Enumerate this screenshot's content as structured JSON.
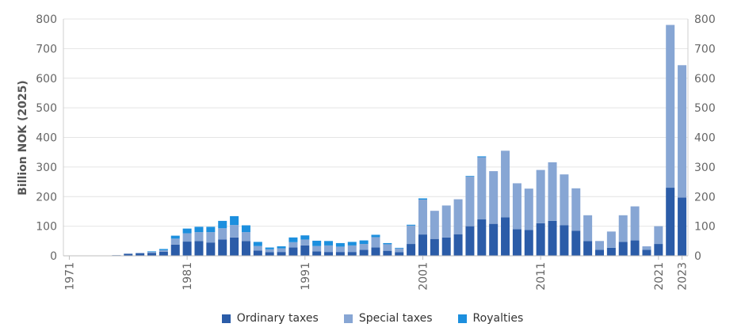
{
  "chart_data": {
    "type": "bar",
    "stacked": true,
    "ylabel": "Billion NOK (2025)",
    "xlabel": "",
    "ylim": [
      0,
      800
    ],
    "yticks": [
      0,
      100,
      200,
      300,
      400,
      500,
      600,
      700,
      800
    ],
    "x_tick_labels": [
      "1971",
      "1981",
      "1991",
      "2001",
      "2011",
      "2021",
      "2023"
    ],
    "dual_y_axis": true,
    "grid": true,
    "legend_position": "bottom",
    "categories": [
      "1971",
      "1972",
      "1973",
      "1974",
      "1975",
      "1976",
      "1977",
      "1978",
      "1979",
      "1980",
      "1981",
      "1982",
      "1983",
      "1984",
      "1985",
      "1986",
      "1987",
      "1988",
      "1989",
      "1990",
      "1991",
      "1992",
      "1993",
      "1994",
      "1995",
      "1996",
      "1997",
      "1998",
      "1999",
      "2000",
      "2001",
      "2002",
      "2003",
      "2004",
      "2005",
      "2006",
      "2007",
      "2008",
      "2009",
      "2010",
      "2011",
      "2012",
      "2013",
      "2014",
      "2015",
      "2016",
      "2017",
      "2018",
      "2019",
      "2020",
      "2021",
      "2022",
      "2023"
    ],
    "series": [
      {
        "name": "Ordinary taxes",
        "color": "#2b5ca8",
        "values": [
          1,
          1,
          1,
          1,
          2,
          7,
          8,
          10,
          14,
          38,
          48,
          50,
          45,
          55,
          62,
          50,
          18,
          12,
          13,
          28,
          35,
          15,
          13,
          13,
          13,
          20,
          28,
          17,
          12,
          40,
          72,
          57,
          62,
          73,
          100,
          123,
          108,
          130,
          90,
          87,
          110,
          118,
          103,
          85,
          50,
          20,
          27,
          47,
          52,
          20,
          40,
          230,
          197
        ]
      },
      {
        "name": "Special taxes",
        "color": "#87a6d4",
        "values": [
          0,
          0,
          0,
          0,
          0,
          0,
          2,
          3,
          5,
          20,
          28,
          30,
          35,
          38,
          42,
          30,
          15,
          10,
          12,
          18,
          20,
          18,
          22,
          18,
          22,
          20,
          35,
          22,
          13,
          62,
          118,
          95,
          108,
          118,
          168,
          210,
          178,
          225,
          155,
          140,
          180,
          198,
          172,
          143,
          87,
          30,
          55,
          90,
          115,
          12,
          60,
          550,
          447
        ]
      },
      {
        "name": "Royalties",
        "color": "#1c8fde",
        "values": [
          0,
          0,
          0,
          0,
          0,
          0,
          0,
          2,
          4,
          10,
          16,
          18,
          18,
          25,
          30,
          23,
          14,
          6,
          7,
          16,
          14,
          18,
          15,
          12,
          12,
          12,
          8,
          4,
          2,
          3,
          4,
          0,
          0,
          0,
          2,
          3,
          0,
          0,
          0,
          0,
          0,
          0,
          0,
          0,
          0,
          0,
          0,
          0,
          0,
          0,
          0,
          0,
          0
        ]
      }
    ]
  }
}
